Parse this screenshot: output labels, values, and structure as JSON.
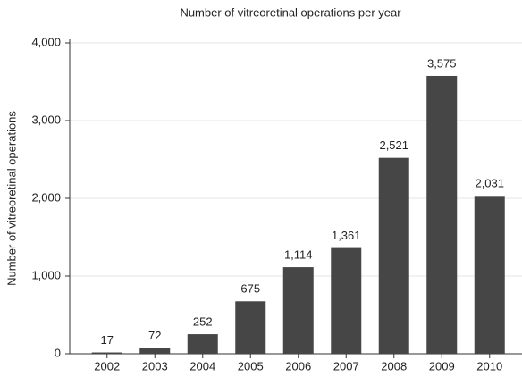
{
  "chart_data": {
    "type": "bar",
    "title": "Number of vitreoretinal operations per year",
    "y_label": "Number of vitreoretinal operations",
    "categories": [
      "2002",
      "2003",
      "2004",
      "2005",
      "2006",
      "2007",
      "2008",
      "2009",
      "2010"
    ],
    "values": [
      17,
      72,
      252,
      675,
      1114,
      1361,
      2521,
      3575,
      2031
    ],
    "value_labels": [
      "17",
      "72",
      "252",
      "675",
      "1,114",
      "1,361",
      "2,521",
      "3,575",
      "2,031"
    ],
    "color": "#464646",
    "ylim": [
      0,
      4000
    ],
    "yticks": [
      0,
      {
        "value": 1000,
        "label": "1,000"
      },
      {
        "value": 2000,
        "label": "2,000"
      },
      {
        "value": 3000,
        "label": "3,000"
      },
      {
        "value": 4000,
        "label": "4,000"
      }
    ],
    "grid": true
  }
}
